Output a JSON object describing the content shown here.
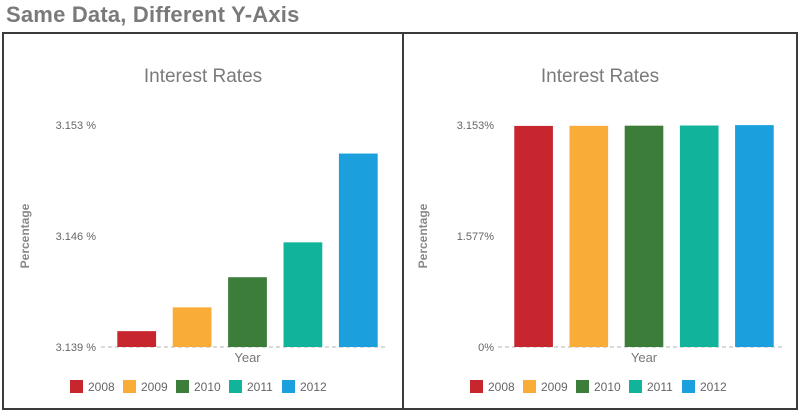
{
  "header": {
    "title": "Same Data, Different Y-Axis"
  },
  "colors": {
    "2008": "#c8262f",
    "2009": "#f9ac38",
    "2010": "#3c7d3a",
    "2011": "#12b39b",
    "2012": "#1ba0dd"
  },
  "chart_data": [
    {
      "type": "bar",
      "title": "Interest Rates",
      "xlabel": "Year",
      "ylabel": "Percentage",
      "categories": [
        "2008",
        "2009",
        "2010",
        "2011",
        "2012"
      ],
      "values": [
        3.14,
        3.1415,
        3.1434,
        3.1456,
        3.1512
      ],
      "ylim": [
        3.139,
        3.153
      ],
      "yticks": [
        "3.139 %",
        "3.146 %",
        "3.153 %"
      ],
      "grid": false,
      "legend_position": "bottom"
    },
    {
      "type": "bar",
      "title": "Interest Rates",
      "xlabel": "Year",
      "ylabel": "Percentage",
      "categories": [
        "2008",
        "2009",
        "2010",
        "2011",
        "2012"
      ],
      "values": [
        3.14,
        3.1415,
        3.1434,
        3.1456,
        3.1512
      ],
      "ylim": [
        0,
        3.153
      ],
      "yticks": [
        "0%",
        "1.577%",
        "3.153%"
      ],
      "grid": false,
      "legend_position": "bottom"
    }
  ]
}
